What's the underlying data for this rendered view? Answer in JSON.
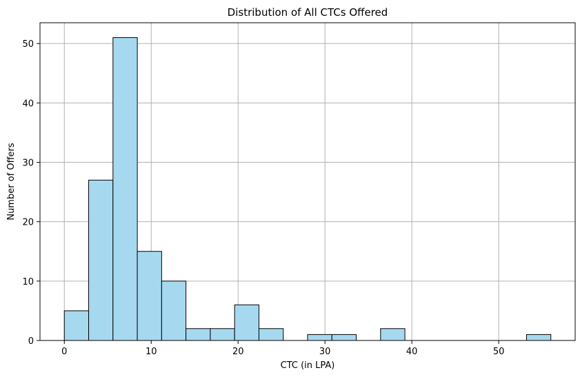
{
  "chart_data": {
    "type": "bar",
    "title": "Distribution of All CTCs Offered",
    "xlabel": "CTC (in LPA)",
    "ylabel": "Number of Offers",
    "xlim": [
      -2.8,
      58.8
    ],
    "ylim": [
      0,
      53.5
    ],
    "xticks": [
      0,
      10,
      20,
      30,
      40,
      50
    ],
    "yticks": [
      0,
      10,
      20,
      30,
      40,
      50
    ],
    "grid": true,
    "bin_edges": [
      0,
      2.8,
      5.6,
      8.4,
      11.2,
      14.0,
      16.8,
      19.6,
      22.4,
      25.2,
      28.0,
      30.8,
      33.6,
      36.4,
      39.2,
      42.0,
      44.8,
      47.6,
      50.4,
      53.2,
      56.0
    ],
    "values": [
      5,
      27,
      51,
      15,
      10,
      2,
      2,
      6,
      2,
      0,
      1,
      1,
      0,
      2,
      0,
      0,
      0,
      0,
      0,
      1
    ],
    "colors": {
      "bar_fill": "#a6d9f0",
      "bar_edge": "#000000",
      "grid": "#b0b0b0"
    }
  }
}
